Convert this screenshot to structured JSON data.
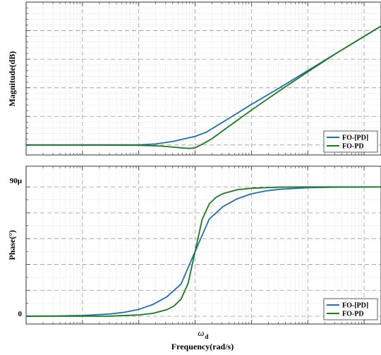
{
  "chart_data": [
    {
      "type": "line",
      "ylabel": "Magnitude(dB)",
      "xscale": "log",
      "xlim_decades": [
        -3,
        3.3
      ],
      "ylim": [
        -3.5,
        50
      ],
      "grid": true,
      "legend_position": "bottom-right",
      "series": [
        {
          "name": "FO-[PD]",
          "color": "#1f6fb4",
          "x_decades": [
            -3,
            -1,
            -0.7,
            -0.4,
            -0.2,
            0,
            0.2,
            0.4,
            0.6,
            1,
            1.5,
            2,
            2.5,
            3,
            3.3
          ],
          "y": [
            0,
            0.05,
            0.35,
            1.2,
            2.1,
            3.0,
            4.5,
            6.9,
            9.3,
            14.2,
            20.0,
            26.0,
            32.0,
            38.0,
            41.6
          ]
        },
        {
          "name": "FO-PD",
          "color": "#1a7a1a",
          "x_decades": [
            -3,
            -1,
            -0.6,
            -0.3,
            -0.1,
            0,
            0.15,
            0.3,
            0.6,
            1,
            1.5,
            2,
            2.5,
            3,
            3.3
          ],
          "y": [
            0,
            -0.1,
            -0.4,
            -0.9,
            -1.2,
            -1.0,
            0.5,
            2.2,
            6.5,
            12.2,
            19.0,
            25.6,
            32.0,
            38.0,
            41.6
          ]
        }
      ]
    },
    {
      "type": "line",
      "ylabel": "Phase(°)",
      "xlabel": "Frequency(rad/s)",
      "xtick_label_main": "ω",
      "xtick_label_sub": "d",
      "ytick_labels": [
        "0",
        "90μ"
      ],
      "xscale": "log",
      "xlim_decades": [
        -3,
        3.3
      ],
      "ylim": [
        -0.06,
        1.16
      ],
      "grid": true,
      "legend_position": "bottom-right",
      "series": [
        {
          "name": "FO-[PD]",
          "color": "#1f6fb4",
          "x_decades": [
            -3,
            -2.5,
            -2,
            -1.5,
            -1.25,
            -1,
            -0.75,
            -0.5,
            -0.25,
            0,
            0.25,
            0.5,
            0.75,
            1,
            1.25,
            1.5,
            2,
            2.5,
            3,
            3.3
          ],
          "y": [
            0.001,
            0.002,
            0.006,
            0.018,
            0.031,
            0.053,
            0.091,
            0.151,
            0.249,
            0.5,
            0.751,
            0.849,
            0.909,
            0.947,
            0.969,
            0.982,
            0.994,
            0.998,
            0.999,
            1.0
          ]
        },
        {
          "name": "FO-PD",
          "color": "#1a7a1a",
          "x_decades": [
            -3,
            -1.5,
            -1,
            -0.75,
            -0.5,
            -0.375,
            -0.25,
            -0.125,
            0,
            0.125,
            0.25,
            0.375,
            0.5,
            0.75,
            1,
            1.5,
            2,
            3,
            3.3
          ],
          "y": [
            0,
            0.001,
            0.01,
            0.022,
            0.051,
            0.079,
            0.132,
            0.252,
            0.5,
            0.748,
            0.868,
            0.921,
            0.949,
            0.978,
            0.99,
            0.998,
            1.0,
            1.0,
            1.0
          ]
        }
      ]
    }
  ]
}
